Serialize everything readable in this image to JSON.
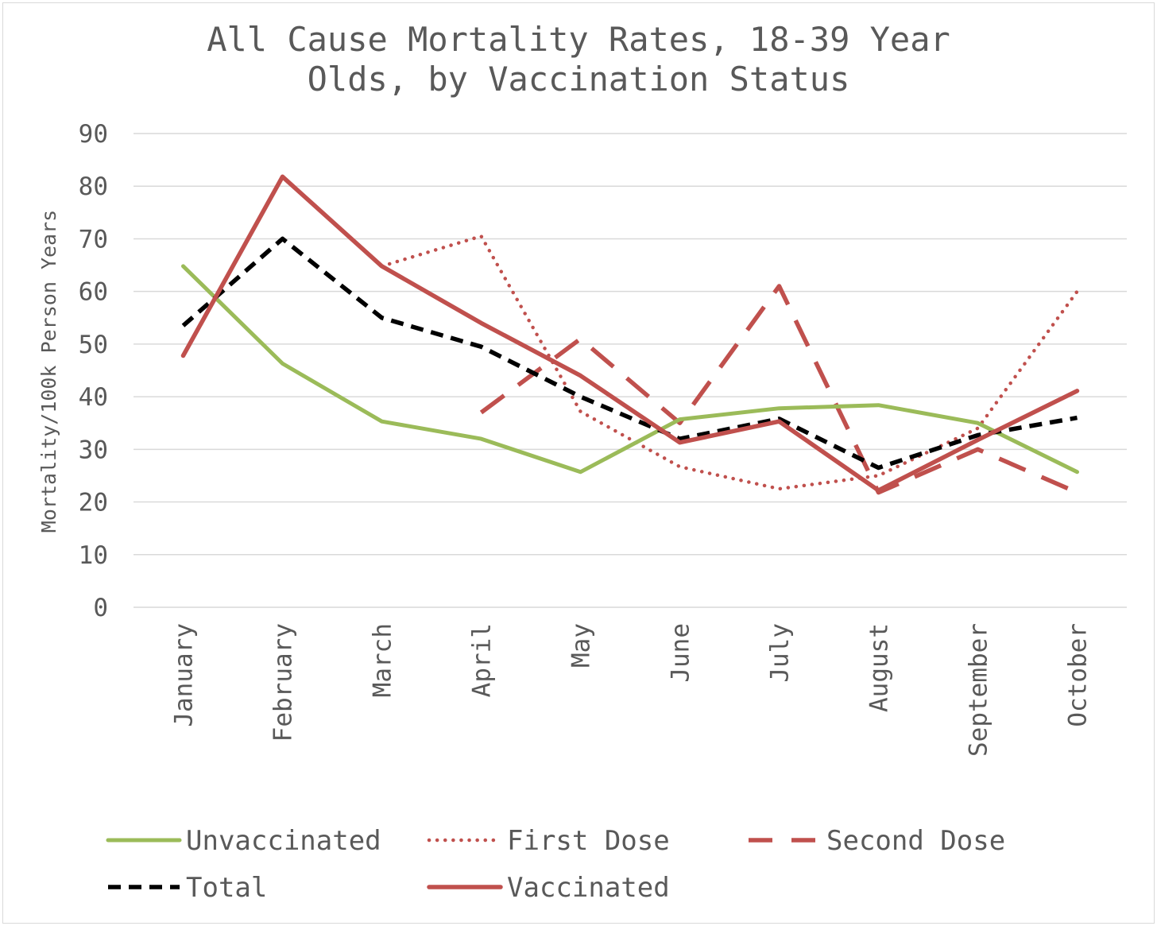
{
  "chart_data": {
    "type": "line",
    "title": "All Cause Mortality Rates, 18-39 Year Olds, by Vaccination Status",
    "title_lines": [
      "All Cause Mortality Rates, 18-39 Year",
      "Olds, by Vaccination Status"
    ],
    "xlabel": "",
    "ylabel": "Mortality/100k Person Years",
    "ylim": [
      0,
      90
    ],
    "yticks": [
      "0",
      "10",
      "20",
      "30",
      "40",
      "50",
      "60",
      "70",
      "80",
      "90"
    ],
    "grid": true,
    "legend_position": "bottom",
    "categories": [
      "January",
      "February",
      "March",
      "April",
      "May",
      "June",
      "July",
      "August",
      "September",
      "October"
    ],
    "series": [
      {
        "name": "Unvaccinated",
        "color": "#9bbb59",
        "style": "solid",
        "values": [
          64.8,
          46.3,
          35.3,
          32.0,
          25.7,
          35.7,
          37.8,
          38.4,
          35.0,
          25.7
        ]
      },
      {
        "name": "First Dose",
        "color": "#c0504d",
        "style": "dotted",
        "values": [
          null,
          null,
          64.8,
          70.5,
          37.2,
          26.7,
          22.5,
          25.0,
          34.0,
          60.0
        ]
      },
      {
        "name": "Second Dose",
        "color": "#c0504d",
        "style": "dashed",
        "values": [
          null,
          null,
          null,
          37.0,
          51.0,
          35.0,
          61.0,
          21.8,
          30.0,
          21.8
        ]
      },
      {
        "name": "Total",
        "color": "#000000",
        "style": "dashed-short",
        "values": [
          53.5,
          70.0,
          55.0,
          49.5,
          40.0,
          32.0,
          35.8,
          26.5,
          32.7,
          36.0
        ]
      },
      {
        "name": "Vaccinated",
        "color": "#c0504d",
        "style": "solid",
        "values": [
          47.8,
          81.8,
          64.8,
          54.0,
          44.0,
          31.3,
          35.3,
          22.2,
          31.8,
          41.1
        ]
      }
    ]
  }
}
